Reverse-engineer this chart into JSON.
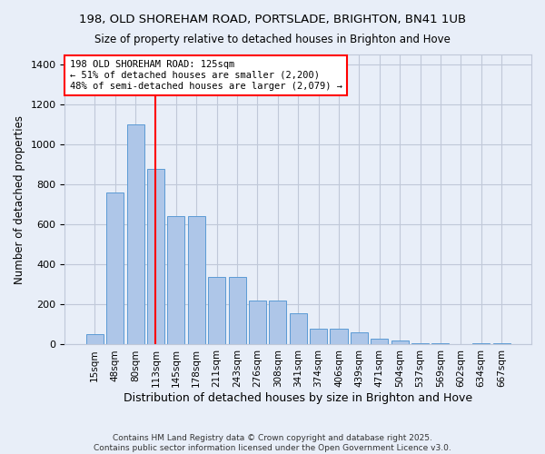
{
  "title1": "198, OLD SHOREHAM ROAD, PORTSLADE, BRIGHTON, BN41 1UB",
  "title2": "Size of property relative to detached houses in Brighton and Hove",
  "xlabel": "Distribution of detached houses by size in Brighton and Hove",
  "ylabel": "Number of detached properties",
  "categories": [
    "15sqm",
    "48sqm",
    "80sqm",
    "113sqm",
    "145sqm",
    "178sqm",
    "211sqm",
    "243sqm",
    "276sqm",
    "308sqm",
    "341sqm",
    "374sqm",
    "406sqm",
    "439sqm",
    "471sqm",
    "504sqm",
    "537sqm",
    "569sqm",
    "602sqm",
    "634sqm",
    "667sqm"
  ],
  "values": [
    50,
    760,
    1100,
    880,
    640,
    640,
    340,
    340,
    220,
    220,
    155,
    80,
    80,
    60,
    30,
    20,
    8,
    8,
    2,
    8,
    8
  ],
  "bar_color": "#aec6e8",
  "bar_edge_color": "#5b9bd5",
  "vline_x": 3.0,
  "vline_color": "red",
  "annotation_text": "198 OLD SHOREHAM ROAD: 125sqm\n← 51% of detached houses are smaller (2,200)\n48% of semi-detached houses are larger (2,079) →",
  "annotation_box_color": "white",
  "annotation_box_edge_color": "red",
  "ylim": [
    0,
    1450
  ],
  "yticks": [
    0,
    200,
    400,
    600,
    800,
    1000,
    1200,
    1400
  ],
  "footer": "Contains HM Land Registry data © Crown copyright and database right 2025.\nContains public sector information licensed under the Open Government Licence v3.0.",
  "background_color": "#e8eef8",
  "grid_color": "#c0c8d8"
}
